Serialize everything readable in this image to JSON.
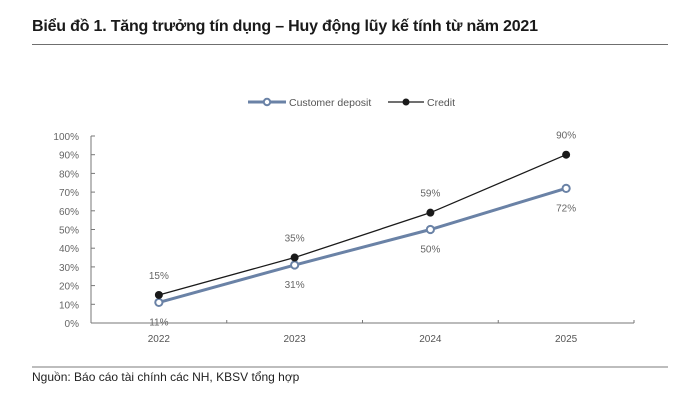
{
  "header": {
    "title": "Biểu đồ 1. Tăng trưởng tín dụng – Huy động lũy kế tính từ năm 2021"
  },
  "footer": {
    "source": "Nguồn: Báo cáo tài chính các NH, KBSV tổng hợp"
  },
  "colors": {
    "deposit": "#6a82a6",
    "credit": "#1a1a1a",
    "axis": "#777777",
    "label": "#666666"
  },
  "chart_data": {
    "type": "line",
    "title": "Biểu đồ 1. Tăng trưởng tín dụng – Huy động lũy kế tính từ năm 2021",
    "xlabel": "",
    "ylabel": "",
    "categories": [
      "2022",
      "2023",
      "2024",
      "2025"
    ],
    "series": [
      {
        "name": "Customer deposit",
        "values": [
          11,
          31,
          50,
          72
        ],
        "labels": [
          "11%",
          "31%",
          "50%",
          "72%"
        ],
        "color": "#6a82a6",
        "marker": "hollow-circle"
      },
      {
        "name": "Credit",
        "values": [
          15,
          35,
          59,
          90
        ],
        "labels": [
          "15%",
          "35%",
          "59%",
          "90%"
        ],
        "color": "#1a1a1a",
        "marker": "filled-circle"
      }
    ],
    "ylim": [
      0,
      100
    ],
    "yticks": [
      "0%",
      "10%",
      "20%",
      "30%",
      "40%",
      "50%",
      "60%",
      "70%",
      "80%",
      "90%",
      "100%"
    ],
    "grid": false,
    "legend_position": "top"
  }
}
